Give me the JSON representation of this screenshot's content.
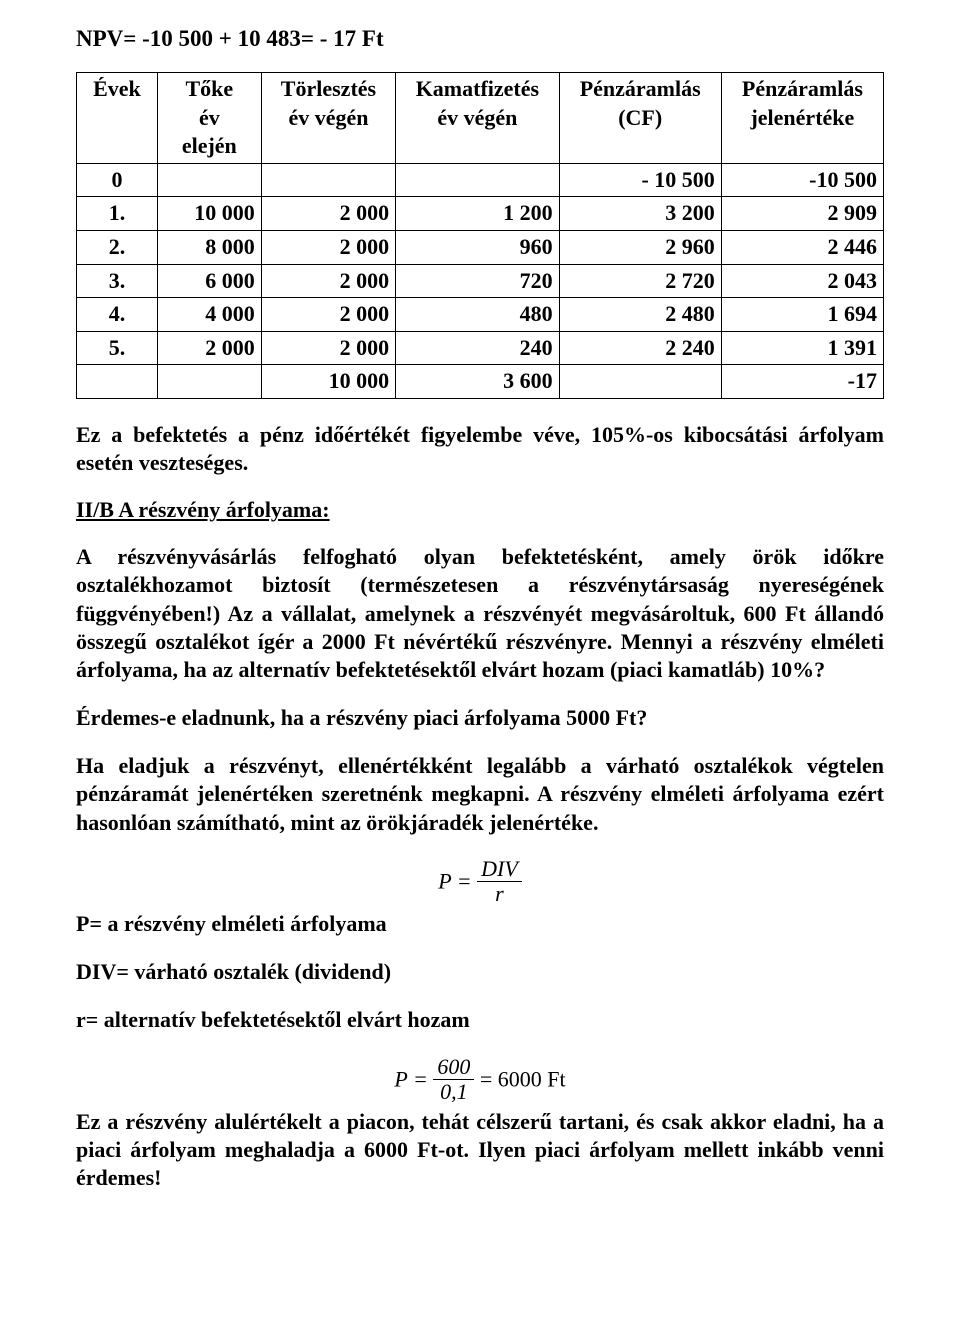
{
  "npv_line": "NPV= -10 500 + 10 483= - 17 Ft",
  "table": {
    "headers": {
      "evek": "Évek",
      "toke_line1": "Tőke",
      "toke_line2": "év",
      "toke_line3": "elején",
      "torl_line1": "Törlesztés",
      "torl_line2": "év végén",
      "kamat_line1": "Kamatfizetés",
      "kamat_line2": "év végén",
      "cf_line1": "Pénzáramlás",
      "cf_line2": "(CF)",
      "pv_line1": "Pénzáramlás",
      "pv_line2": "jelenértéke"
    },
    "rows": [
      {
        "evek": "0",
        "toke": "",
        "torl": "",
        "kamat": "",
        "cf": "- 10 500",
        "pv": "-10 500"
      },
      {
        "evek": "1.",
        "toke": "10 000",
        "torl": "2 000",
        "kamat": "1 200",
        "cf": "3 200",
        "pv": "2 909"
      },
      {
        "evek": "2.",
        "toke": "8 000",
        "torl": "2 000",
        "kamat": "960",
        "cf": "2 960",
        "pv": "2 446"
      },
      {
        "evek": "3.",
        "toke": "6 000",
        "torl": "2 000",
        "kamat": "720",
        "cf": "2 720",
        "pv": "2 043"
      },
      {
        "evek": "4.",
        "toke": "4 000",
        "torl": "2 000",
        "kamat": "480",
        "cf": "2 480",
        "pv": "1 694"
      },
      {
        "evek": "5.",
        "toke": "2 000",
        "torl": "2 000",
        "kamat": "240",
        "cf": "2 240",
        "pv": "1 391"
      },
      {
        "evek": "",
        "toke": "",
        "torl": "10 000",
        "kamat": "3 600",
        "cf": "",
        "pv": "-17"
      }
    ]
  },
  "p_after_table": "Ez a  befektetés a pénz időértékét figyelembe véve, 105%-os  kibocsátási árfolyam esetén  veszteséges.",
  "heading_iib": "II/B A részvény árfolyama:",
  "p_iib_1": "A részvényvásárlás felfogható olyan befektetésként, amely örök időkre osztalékhozamot biztosít (természetesen a részvénytársaság nyereségének függvényében!) Az a vállalat, amelynek a részvényét megvásároltuk, 600 Ft állandó összegű osztalékot ígér a 2000 Ft névértékű részvényre. Mennyi a részvény elméleti árfolyama, ha az alternatív befektetésektől elvárt hozam (piaci kamatláb) 10%?",
  "p_iib_2": "Érdemes-e eladnunk, ha a részvény piaci árfolyama 5000 Ft?",
  "p_eladjuk": "Ha eladjuk a részvényt, ellenértékként legalább a várható osztalékok végtelen pénzáramát jelenértéken szeretnénk megkapni. A részvény elméleti árfolyama ezért  hasonlóan számítható, mint az örökjáradék jelenértéke.",
  "formula1": {
    "lhs": "P =",
    "num": "DIV",
    "den": "r"
  },
  "defs": {
    "p": "P= a részvény elméleti árfolyama",
    "div": "DIV= várható osztalék (dividend)",
    "r": "r= alternatív befektetésektől elvárt hozam"
  },
  "formula2": {
    "lhs": "P =",
    "num": "600",
    "den": "0,1",
    "rhs": "= 6000 Ft"
  },
  "p_conclusion": "Ez a részvény alulértékelt a piacon, tehát célszerű tartani, és csak akkor eladni, ha a piaci árfolyam meghaladja a 6000 Ft-ot. Ilyen piaci árfolyam mellett inkább venni érdemes!"
}
